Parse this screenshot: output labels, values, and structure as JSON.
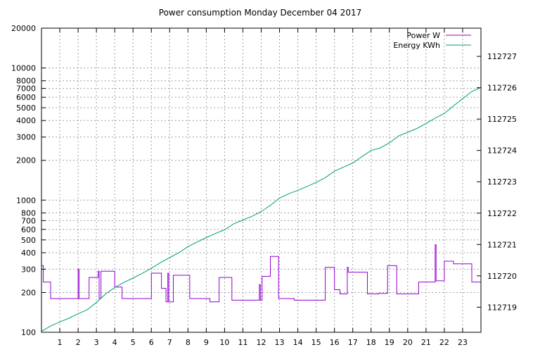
{
  "chart_data": {
    "type": "line",
    "title": "Power consumption Monday December 04 2017",
    "xlabel": "",
    "ylabel": "",
    "xlim": [
      0,
      24
    ],
    "x_ticks": [
      "1",
      "2",
      "3",
      "4",
      "5",
      "6",
      "7",
      "8",
      "9",
      "10",
      "11",
      "12",
      "13",
      "14",
      "15",
      "16",
      "17",
      "18",
      "19",
      "20",
      "21",
      "22",
      "23"
    ],
    "y_left": {
      "scale": "log",
      "range": [
        100,
        20000
      ],
      "ticks": [
        "100",
        "200",
        "300",
        "400",
        "500",
        "600",
        "700",
        "800",
        "1000",
        "2000",
        "3000",
        "4000",
        "5000",
        "6000",
        "7000",
        "8000",
        "10000",
        "20000"
      ]
    },
    "y_right": {
      "range": [
        112718.2,
        112727.9
      ],
      "ticks": [
        "112719",
        "112720",
        "112721",
        "112722",
        "112723",
        "112724",
        "112725",
        "112726",
        "112727"
      ]
    },
    "grid": true,
    "legend_position": "top-right",
    "series": [
      {
        "name": "Power W",
        "axis": "left",
        "color": "#9400d3",
        "points": [
          [
            0,
            320
          ],
          [
            0.1,
            320
          ],
          [
            0.1,
            240
          ],
          [
            0.5,
            240
          ],
          [
            0.5,
            180
          ],
          [
            2.0,
            180
          ],
          [
            2.0,
            300
          ],
          [
            2.05,
            300
          ],
          [
            2.05,
            180
          ],
          [
            2.6,
            180
          ],
          [
            2.6,
            260
          ],
          [
            3.1,
            260
          ],
          [
            3.1,
            290
          ],
          [
            3.15,
            290
          ],
          [
            3.15,
            180
          ],
          [
            3.25,
            180
          ],
          [
            3.25,
            290
          ],
          [
            4.0,
            290
          ],
          [
            4.0,
            220
          ],
          [
            4.4,
            220
          ],
          [
            4.4,
            180
          ],
          [
            6.0,
            180
          ],
          [
            6.0,
            280
          ],
          [
            6.55,
            280
          ],
          [
            6.55,
            215
          ],
          [
            6.8,
            215
          ],
          [
            6.8,
            170
          ],
          [
            6.9,
            170
          ],
          [
            6.9,
            280
          ],
          [
            6.95,
            280
          ],
          [
            6.95,
            170
          ],
          [
            7.2,
            170
          ],
          [
            7.2,
            270
          ],
          [
            8.1,
            270
          ],
          [
            8.1,
            180
          ],
          [
            9.2,
            180
          ],
          [
            9.2,
            170
          ],
          [
            9.7,
            170
          ],
          [
            9.7,
            260
          ],
          [
            10.4,
            260
          ],
          [
            10.4,
            175
          ],
          [
            11.9,
            175
          ],
          [
            11.9,
            230
          ],
          [
            11.95,
            230
          ],
          [
            11.95,
            175
          ],
          [
            12.05,
            175
          ],
          [
            12.05,
            265
          ],
          [
            12.5,
            265
          ],
          [
            12.5,
            375
          ],
          [
            12.95,
            375
          ],
          [
            12.95,
            180
          ],
          [
            13.8,
            180
          ],
          [
            13.8,
            175
          ],
          [
            15.5,
            175
          ],
          [
            15.5,
            310
          ],
          [
            16.0,
            310
          ],
          [
            16.0,
            210
          ],
          [
            16.3,
            210
          ],
          [
            16.3,
            195
          ],
          [
            16.7,
            195
          ],
          [
            16.7,
            310
          ],
          [
            16.75,
            310
          ],
          [
            16.75,
            285
          ],
          [
            17.8,
            285
          ],
          [
            17.8,
            195
          ],
          [
            18.4,
            195
          ],
          [
            18.4,
            197
          ],
          [
            18.9,
            197
          ],
          [
            18.9,
            320
          ],
          [
            19.4,
            320
          ],
          [
            19.4,
            195
          ],
          [
            20.6,
            195
          ],
          [
            20.6,
            240
          ],
          [
            21.5,
            240
          ],
          [
            21.5,
            460
          ],
          [
            21.55,
            460
          ],
          [
            21.55,
            245
          ],
          [
            22.0,
            245
          ],
          [
            22.0,
            345
          ],
          [
            22.5,
            345
          ],
          [
            22.5,
            330
          ],
          [
            23.5,
            330
          ],
          [
            23.5,
            240
          ],
          [
            24,
            240
          ]
        ]
      },
      {
        "name": "Energy KWh",
        "axis": "right",
        "color": "#009e73",
        "points": [
          [
            0,
            112718.23
          ],
          [
            0.5,
            112718.4
          ],
          [
            1.0,
            112718.53
          ],
          [
            1.5,
            112718.65
          ],
          [
            2.0,
            112718.79
          ],
          [
            2.5,
            112718.92
          ],
          [
            3.0,
            112719.15
          ],
          [
            3.5,
            112719.42
          ],
          [
            4.0,
            112719.63
          ],
          [
            4.5,
            112719.79
          ],
          [
            5.0,
            112719.93
          ],
          [
            5.5,
            112720.08
          ],
          [
            6.0,
            112720.24
          ],
          [
            6.5,
            112720.42
          ],
          [
            7.0,
            112720.58
          ],
          [
            7.5,
            112720.74
          ],
          [
            8.0,
            112720.93
          ],
          [
            8.5,
            112721.08
          ],
          [
            9.0,
            112721.22
          ],
          [
            9.5,
            112721.35
          ],
          [
            10.0,
            112721.47
          ],
          [
            10.5,
            112721.66
          ],
          [
            11.0,
            112721.78
          ],
          [
            11.5,
            112721.9
          ],
          [
            12.0,
            112722.05
          ],
          [
            12.5,
            112722.25
          ],
          [
            13.0,
            112722.48
          ],
          [
            13.5,
            112722.62
          ],
          [
            14.0,
            112722.73
          ],
          [
            14.5,
            112722.85
          ],
          [
            15.0,
            112722.98
          ],
          [
            15.5,
            112723.13
          ],
          [
            16.0,
            112723.34
          ],
          [
            16.5,
            112723.47
          ],
          [
            17.0,
            112723.6
          ],
          [
            17.5,
            112723.8
          ],
          [
            18.0,
            112724.0
          ],
          [
            18.5,
            112724.08
          ],
          [
            19.0,
            112724.24
          ],
          [
            19.5,
            112724.46
          ],
          [
            20.0,
            112724.58
          ],
          [
            20.5,
            112724.7
          ],
          [
            21.0,
            112724.86
          ],
          [
            21.5,
            112725.03
          ],
          [
            22.0,
            112725.18
          ],
          [
            22.5,
            112725.42
          ],
          [
            23.0,
            112725.65
          ],
          [
            23.5,
            112725.88
          ],
          [
            24,
            112726.01
          ]
        ]
      }
    ]
  }
}
